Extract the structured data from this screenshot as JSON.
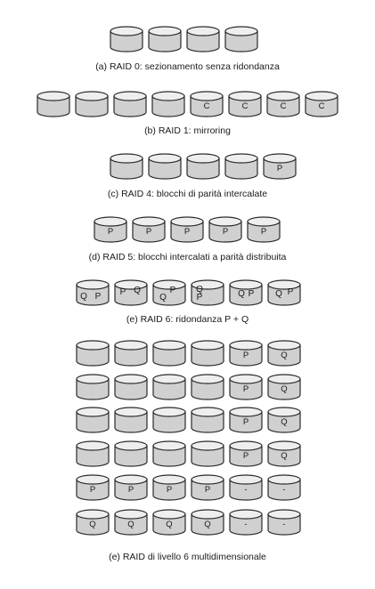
{
  "colors": {
    "disk_fill": "#d0d0d0",
    "disk_top": "#eeeeee",
    "disk_stroke": "#2b2b2b",
    "text": "#1a1a1a"
  },
  "sections": [
    {
      "id": "raid0",
      "caption": "(a) RAID 0: sezionamento senza ridondanza",
      "rows": [
        {
          "disks": [
            [],
            [],
            [],
            []
          ]
        }
      ]
    },
    {
      "id": "raid1",
      "caption": "(b) RAID 1: mirroring",
      "rows": [
        {
          "disks": [
            [],
            [],
            [],
            [],
            [
              "C"
            ],
            [
              "C"
            ],
            [
              "C"
            ],
            [
              "C"
            ]
          ]
        }
      ]
    },
    {
      "id": "raid4",
      "caption": "(c) RAID 4: blocchi di parità intercalate",
      "rows": [
        {
          "disks": [
            [],
            [],
            [],
            [],
            [
              "P"
            ]
          ]
        }
      ]
    },
    {
      "id": "raid5",
      "caption": "(d) RAID 5: blocchi intercalati a parità distribuita",
      "rows": [
        {
          "disks": [
            [
              "P"
            ],
            [
              "P"
            ],
            [
              "P"
            ],
            [
              "P"
            ],
            [
              "P"
            ]
          ]
        }
      ]
    },
    {
      "id": "raid6",
      "caption": "(e) RAID 6: ridondanza P + Q",
      "rows": [
        {
          "disks": [
            [
              "Q",
              "P"
            ],
            [
              "P",
              "Q"
            ],
            [
              "Q",
              "P"
            ],
            [
              "Q",
              "P"
            ],
            [
              "Q",
              "P"
            ],
            [
              "Q",
              "P"
            ]
          ]
        }
      ]
    },
    {
      "id": "raid6md",
      "caption": "(e) RAID di livello 6 multidimensionale",
      "rows": [
        {
          "disks": [
            [],
            [],
            [],
            [],
            [
              "P"
            ],
            [
              "Q"
            ]
          ]
        },
        {
          "disks": [
            [],
            [],
            [],
            [],
            [
              "P"
            ],
            [
              "Q"
            ]
          ]
        },
        {
          "disks": [
            [],
            [],
            [],
            [],
            [
              "P"
            ],
            [
              "Q"
            ]
          ]
        },
        {
          "disks": [
            [],
            [],
            [],
            [],
            [
              "P"
            ],
            [
              "Q"
            ]
          ]
        },
        {
          "disks": [
            [
              "P"
            ],
            [
              "P"
            ],
            [
              "P"
            ],
            [
              "P"
            ],
            [
              "-"
            ],
            [
              "-"
            ]
          ]
        },
        {
          "disks": [
            [
              "Q"
            ],
            [
              "Q"
            ],
            [
              "Q"
            ],
            [
              "Q"
            ],
            [
              "-"
            ],
            [
              "-"
            ]
          ]
        }
      ]
    }
  ]
}
